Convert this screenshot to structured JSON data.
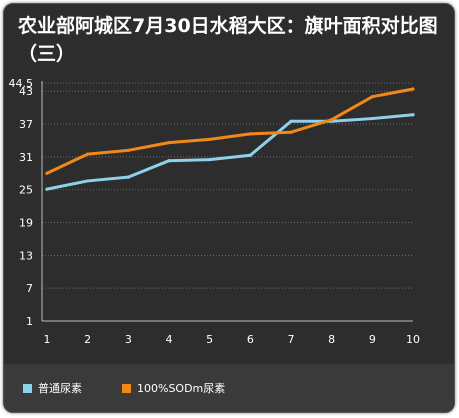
{
  "chart_data": {
    "type": "line",
    "title": "农业部阿城区7月30日水稻大区：旗叶面积对比图（三）",
    "x": [
      1,
      2,
      3,
      4,
      5,
      6,
      7,
      8,
      9,
      10
    ],
    "y_ticks": [
      1,
      7,
      13,
      19,
      25,
      31,
      37,
      43,
      44.5
    ],
    "ylim": [
      1,
      44.5
    ],
    "grid": "horizontal dotted",
    "legend_position": "bottom",
    "series": [
      {
        "name": "普通尿素",
        "color": "#8ed1ea",
        "values": [
          25.1,
          26.6,
          27.3,
          30.3,
          30.5,
          31.3,
          37.5,
          37.5,
          38.0,
          38.7
        ]
      },
      {
        "name": "100%SODm尿素",
        "color": "#f0881a",
        "values": [
          28.0,
          31.5,
          32.2,
          33.6,
          34.2,
          35.2,
          35.5,
          37.8,
          42.0,
          43.4
        ]
      }
    ]
  }
}
